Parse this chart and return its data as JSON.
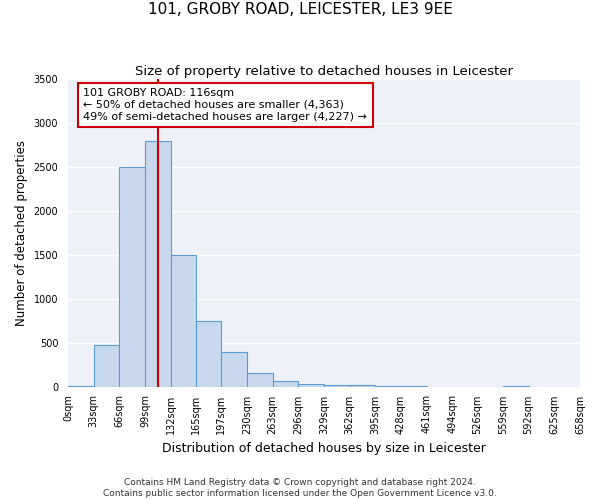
{
  "title": "101, GROBY ROAD, LEICESTER, LE3 9EE",
  "subtitle": "Size of property relative to detached houses in Leicester",
  "xlabel": "Distribution of detached houses by size in Leicester",
  "ylabel": "Number of detached properties",
  "bin_edges": [
    0,
    33,
    66,
    99,
    132,
    165,
    197,
    230,
    263,
    296,
    329,
    362,
    395,
    428,
    461,
    494,
    526,
    559,
    592,
    625,
    658
  ],
  "bar_heights": [
    10,
    470,
    2500,
    2800,
    1500,
    750,
    400,
    150,
    60,
    25,
    20,
    15,
    10,
    5,
    0,
    0,
    0,
    5,
    0,
    0
  ],
  "bar_facecolor": "#c9d9ed",
  "bar_edgecolor": "#5b9bd5",
  "bar_linewidth": 0.8,
  "vline_x": 116,
  "vline_color": "#cc0000",
  "vline_linewidth": 1.5,
  "annotation_line1": "101 GROBY ROAD: 116sqm",
  "annotation_line2": "← 50% of detached houses are smaller (4,363)",
  "annotation_line3": "49% of semi-detached houses are larger (4,227) →",
  "annotation_box_edgecolor": "#cc0000",
  "annotation_fontsize": 8,
  "ylim": [
    0,
    3500
  ],
  "yticks": [
    0,
    500,
    1000,
    1500,
    2000,
    2500,
    3000,
    3500
  ],
  "background_color": "#eef2f8",
  "grid_color": "#ffffff",
  "title_fontsize": 11,
  "subtitle_fontsize": 9.5,
  "xlabel_fontsize": 9,
  "ylabel_fontsize": 8.5,
  "tick_fontsize": 7,
  "footer_line1": "Contains HM Land Registry data © Crown copyright and database right 2024.",
  "footer_line2": "Contains public sector information licensed under the Open Government Licence v3.0.",
  "footer_fontsize": 6.5
}
